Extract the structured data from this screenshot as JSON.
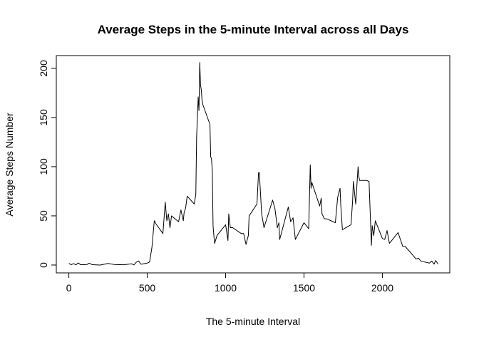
{
  "chart_data": {
    "type": "line",
    "title": "Average Steps in the 5-minute Interval across all Days",
    "xlabel": "The 5-minute Interval",
    "ylabel": "Average Steps Number",
    "xlim": [
      -80,
      2430
    ],
    "ylim": [
      -8,
      213
    ],
    "xticks": [
      0,
      500,
      1000,
      1500,
      2000
    ],
    "yticks": [
      0,
      50,
      100,
      150,
      200
    ],
    "grid": false,
    "legend": "none",
    "line_color": "#000000",
    "series": [
      {
        "x": [
          0,
          15,
          30,
          45,
          60,
          75,
          100,
          115,
          130,
          150,
          200,
          250,
          300,
          320,
          350,
          400,
          415,
          430,
          445,
          460,
          500,
          515,
          530,
          545,
          550,
          555,
          600,
          615,
          625,
          635,
          645,
          655,
          700,
          715,
          730,
          735,
          745,
          755,
          800,
          810,
          815,
          825,
          830,
          835,
          840,
          845,
          850,
          855,
          900,
          905,
          910,
          915,
          920,
          925,
          930,
          945,
          1000,
          1015,
          1020,
          1030,
          1045,
          1100,
          1115,
          1130,
          1145,
          1150,
          1200,
          1210,
          1215,
          1230,
          1245,
          1300,
          1315,
          1330,
          1340,
          1345,
          1400,
          1415,
          1430,
          1445,
          1500,
          1515,
          1530,
          1540,
          1545,
          1550,
          1600,
          1610,
          1615,
          1630,
          1645,
          1700,
          1715,
          1730,
          1735,
          1745,
          1800,
          1810,
          1815,
          1830,
          1845,
          1850,
          1855,
          1900,
          1915,
          1930,
          1935,
          1945,
          1955,
          2000,
          2015,
          2030,
          2045,
          2100,
          2130,
          2145,
          2200,
          2215,
          2230,
          2245,
          2300,
          2315,
          2330,
          2340,
          2355
        ],
        "values": [
          1.7,
          0.3,
          1.5,
          0.2,
          2.1,
          0.3,
          0.3,
          0.5,
          1.9,
          0.3,
          0.0,
          1.6,
          0.2,
          0.4,
          0.2,
          1.2,
          0.1,
          2.8,
          4.1,
          0.8,
          2.0,
          3.0,
          18,
          45,
          44,
          42,
          32,
          64,
          45,
          52,
          38,
          50,
          44,
          56,
          45,
          53,
          58,
          70,
          62,
          72,
          130,
          171,
          157,
          206,
          183,
          178,
          167,
          163,
          143,
          110,
          108,
          96,
          40,
          30,
          22,
          30,
          41,
          25,
          52,
          38,
          38,
          32,
          32,
          21,
          30,
          50,
          62,
          94,
          94,
          52,
          38,
          66,
          57,
          38,
          43,
          26,
          59,
          44,
          48,
          26,
          43,
          40,
          37,
          102,
          78,
          84,
          60,
          68,
          52,
          47,
          47,
          43,
          69,
          78,
          60,
          36,
          41,
          65,
          85,
          62,
          100,
          90,
          86,
          86,
          85,
          20,
          40,
          30,
          45,
          27,
          26,
          35,
          22,
          33,
          19,
          19,
          9,
          6,
          7,
          4,
          2,
          4.0,
          0.9,
          4.6,
          1.1
        ]
      }
    ]
  }
}
